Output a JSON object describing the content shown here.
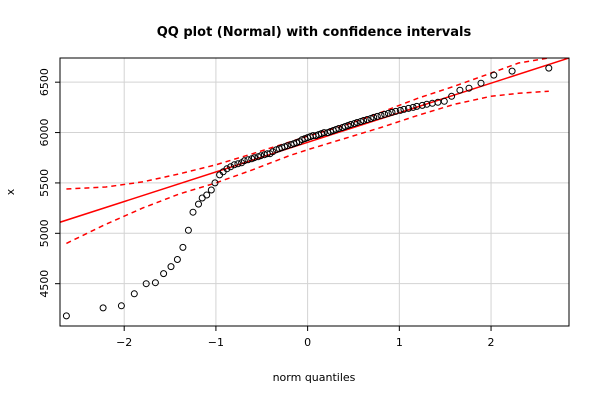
{
  "chart_data": {
    "type": "scatter",
    "title": "QQ plot (Normal) with confidence intervals",
    "xlabel": "norm quantiles",
    "ylabel": "x",
    "xlim": [
      -2.7,
      2.85
    ],
    "ylim": [
      4080,
      6740
    ],
    "x_ticks": [
      -2,
      -1,
      0,
      1,
      2
    ],
    "x_tick_labels": [
      "−2",
      "−1",
      "0",
      "1",
      "2"
    ],
    "y_ticks": [
      4500,
      5000,
      5500,
      6000,
      6500
    ],
    "y_tick_labels": [
      "4500",
      "5000",
      "5500",
      "6000",
      "6500"
    ],
    "grid": true,
    "colors": {
      "points": "#000000",
      "line": "#ff0000",
      "ci": "#ff0000",
      "grid": "#d3d3d3"
    },
    "reference_line": {
      "x": [
        -2.7,
        2.85
      ],
      "y": [
        5110,
        6740
      ]
    },
    "ci_upper": {
      "x": [
        -2.63,
        -2.2,
        -1.8,
        -1.4,
        -1.0,
        -0.6,
        -0.2,
        0.0,
        0.4,
        0.8,
        1.2,
        1.6,
        2.0,
        2.3,
        2.63
      ],
      "y": [
        5440,
        5460,
        5510,
        5590,
        5680,
        5790,
        5905,
        5965,
        6070,
        6200,
        6340,
        6460,
        6590,
        6690,
        6740
      ]
    },
    "ci_lower": {
      "x": [
        -2.63,
        -2.2,
        -1.8,
        -1.4,
        -1.0,
        -0.6,
        -0.2,
        0.0,
        0.4,
        0.8,
        1.2,
        1.6,
        2.0,
        2.3,
        2.63
      ],
      "y": [
        4900,
        5090,
        5250,
        5390,
        5500,
        5630,
        5770,
        5830,
        5940,
        6050,
        6170,
        6280,
        6360,
        6390,
        6410
      ]
    },
    "points": {
      "x": [
        -2.63,
        -2.23,
        -2.03,
        -1.89,
        -1.76,
        -1.66,
        -1.57,
        -1.49,
        -1.42,
        -1.36,
        -1.3,
        -1.25,
        -1.19,
        -1.15,
        -1.1,
        -1.05,
        -1.01,
        -0.96,
        -0.92,
        -0.88,
        -0.84,
        -0.8,
        -0.76,
        -0.72,
        -0.69,
        -0.65,
        -0.61,
        -0.58,
        -0.54,
        -0.51,
        -0.47,
        -0.44,
        -0.41,
        -0.38,
        -0.34,
        -0.31,
        -0.28,
        -0.25,
        -0.22,
        -0.18,
        -0.15,
        -0.12,
        -0.09,
        -0.06,
        -0.03,
        0.0,
        0.03,
        0.06,
        0.09,
        0.12,
        0.15,
        0.18,
        0.22,
        0.25,
        0.28,
        0.31,
        0.34,
        0.38,
        0.41,
        0.44,
        0.47,
        0.51,
        0.54,
        0.58,
        0.61,
        0.65,
        0.69,
        0.72,
        0.76,
        0.8,
        0.84,
        0.88,
        0.92,
        0.96,
        1.01,
        1.05,
        1.1,
        1.15,
        1.19,
        1.25,
        1.3,
        1.36,
        1.42,
        1.49,
        1.57,
        1.66,
        1.76,
        1.89,
        2.03,
        2.23,
        2.63
      ],
      "y": [
        4180,
        4260,
        4280,
        4400,
        4500,
        4510,
        4600,
        4670,
        4740,
        4860,
        5030,
        5210,
        5290,
        5350,
        5380,
        5430,
        5500,
        5580,
        5610,
        5640,
        5660,
        5680,
        5690,
        5700,
        5720,
        5730,
        5740,
        5750,
        5760,
        5770,
        5780,
        5790,
        5790,
        5810,
        5830,
        5840,
        5850,
        5860,
        5870,
        5880,
        5890,
        5900,
        5910,
        5930,
        5940,
        5950,
        5960,
        5970,
        5970,
        5980,
        5990,
        6000,
        6000,
        6010,
        6020,
        6030,
        6040,
        6050,
        6060,
        6070,
        6080,
        6090,
        6100,
        6110,
        6120,
        6130,
        6140,
        6150,
        6160,
        6170,
        6180,
        6190,
        6200,
        6210,
        6220,
        6230,
        6240,
        6250,
        6260,
        6270,
        6280,
        6290,
        6300,
        6310,
        6360,
        6420,
        6440,
        6490,
        6570,
        6610,
        6640
      ]
    }
  }
}
